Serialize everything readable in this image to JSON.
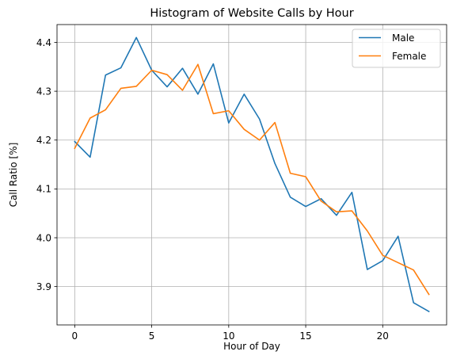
{
  "chart_data": {
    "type": "line",
    "title": "Histogram of Website Calls by Hour",
    "xlabel": "Hour of Day",
    "ylabel": "Call Ratio [%]",
    "x": [
      0,
      1,
      2,
      3,
      4,
      5,
      6,
      7,
      8,
      9,
      10,
      11,
      12,
      13,
      14,
      15,
      16,
      17,
      18,
      19,
      20,
      21,
      22,
      23
    ],
    "xlim": [
      -1.15,
      24.15
    ],
    "ylim": [
      3.8215,
      4.4365
    ],
    "xticks": [
      0,
      5,
      10,
      15,
      20
    ],
    "xtick_labels": [
      "0",
      "5",
      "10",
      "15",
      "20"
    ],
    "yticks": [
      3.9,
      4.0,
      4.1,
      4.2,
      4.3,
      4.4
    ],
    "ytick_labels": [
      "3.9",
      "4.0",
      "4.1",
      "4.2",
      "4.3",
      "4.4"
    ],
    "grid": true,
    "legend_position": "top-right",
    "series": [
      {
        "name": "Male",
        "color": "#1f77b4",
        "values": [
          4.197,
          4.165,
          4.333,
          4.348,
          4.41,
          4.343,
          4.309,
          4.347,
          4.294,
          4.356,
          4.235,
          4.294,
          4.243,
          4.152,
          4.083,
          4.064,
          4.08,
          4.046,
          4.093,
          3.935,
          3.953,
          4.003,
          3.867,
          3.849
        ]
      },
      {
        "name": "Female",
        "color": "#ff7f0e",
        "values": [
          4.183,
          4.245,
          4.262,
          4.306,
          4.31,
          4.343,
          4.334,
          4.302,
          4.355,
          4.254,
          4.26,
          4.222,
          4.2,
          4.236,
          4.132,
          4.125,
          4.075,
          4.053,
          4.055,
          4.014,
          3.964,
          3.949,
          3.934,
          3.884
        ]
      }
    ]
  }
}
